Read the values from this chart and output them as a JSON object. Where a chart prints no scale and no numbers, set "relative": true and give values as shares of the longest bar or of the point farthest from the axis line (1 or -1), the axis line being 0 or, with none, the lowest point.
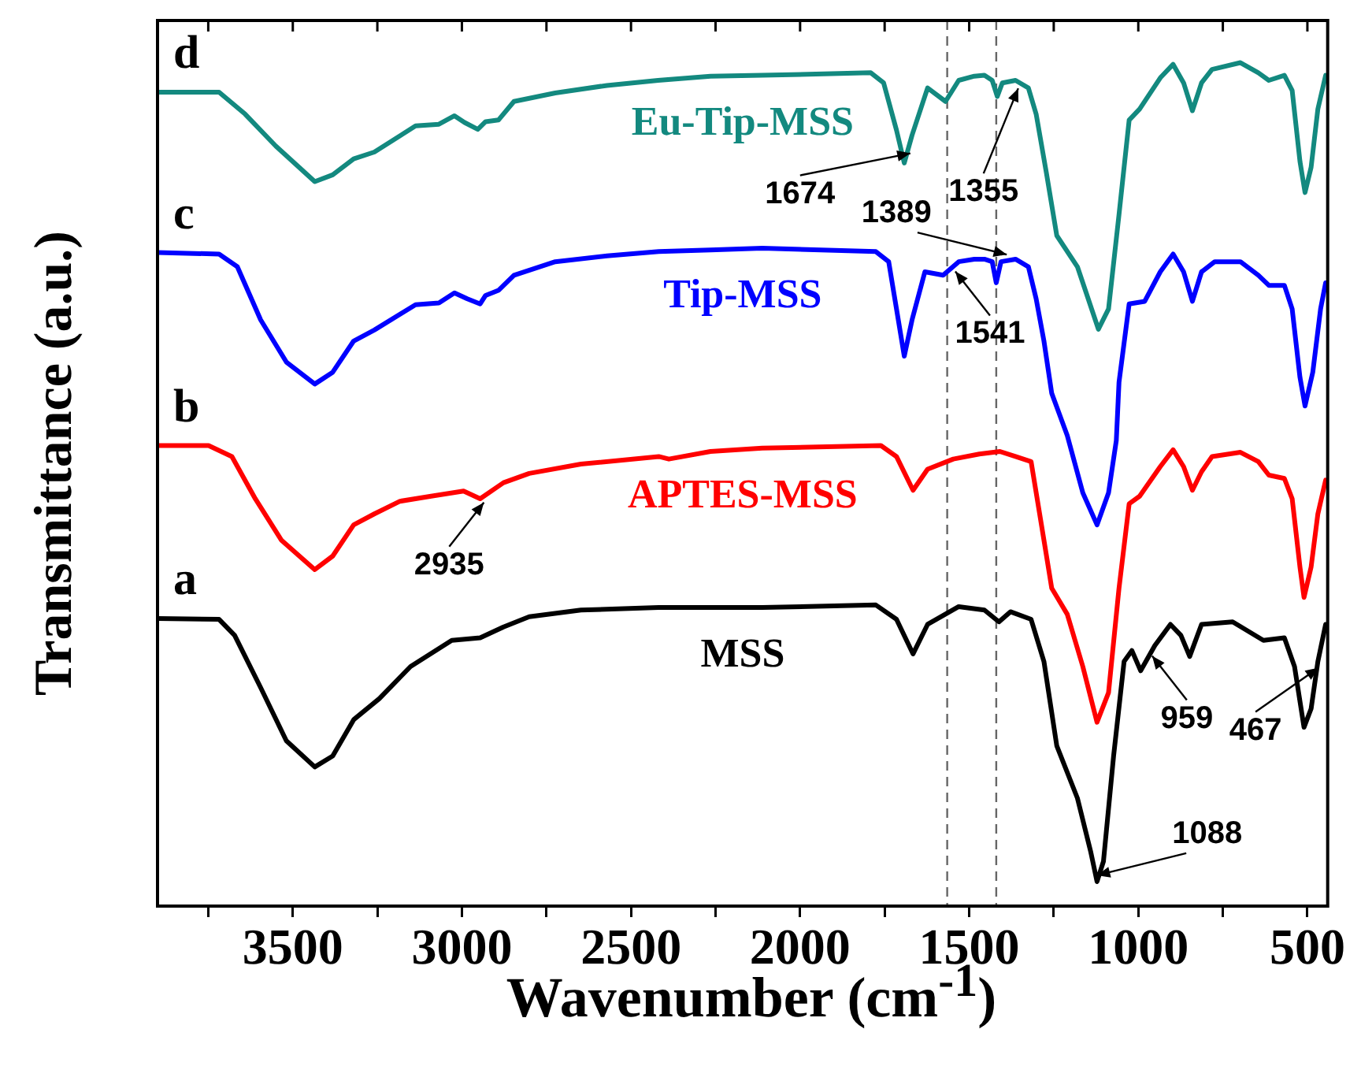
{
  "chart_data": {
    "type": "line",
    "xlabel": "Wavenumber (cm$^{-1}$)",
    "ylabel": "Transmittance (a.u.)",
    "relative": true,
    "marker": "none",
    "line_style": "solid",
    "legend": false,
    "xlim": [
      3900,
      440
    ],
    "xticks": [
      {
        "value": 3750,
        "label": null
      },
      3500,
      {
        "value": 3250,
        "label": null
      },
      3000,
      {
        "value": 2750,
        "label": null
      },
      2500,
      {
        "value": 2250,
        "label": null
      },
      2000,
      {
        "value": 1750,
        "label": null
      },
      1500,
      {
        "value": 1250,
        "label": null
      },
      1000,
      {
        "value": 750,
        "label": null
      },
      500
    ],
    "ref_lines": [
      {
        "axis": "x",
        "value": 1565,
        "color": "#666666",
        "line_style": "dashed"
      },
      {
        "axis": "x",
        "value": 1420,
        "color": "#666666",
        "line_style": "dashed"
      }
    ],
    "annotations": [
      "a",
      "b",
      "c",
      "d",
      {
        "text": "1355",
        "x": 1355,
        "y": 0.977
      },
      {
        "text": "1541",
        "x": 1541,
        "y": 0.76
      },
      {
        "text": "1389",
        "x": 1389,
        "y": 0.765
      },
      {
        "text": "959",
        "x": 959,
        "y": 0.304
      },
      {
        "text": "1674",
        "x": 1674,
        "y": 0.9
      },
      {
        "text": "467",
        "x": 467,
        "y": 0.29
      },
      {
        "text": "2935",
        "x": 2935,
        "y": 0.486
      },
      {
        "text": "1088",
        "x": 1122,
        "y": 0.029
      }
    ],
    "series": [
      {
        "name": "MSS",
        "color": "#000000",
        "x": [
          3900,
          3718,
          3672,
          3595,
          3519,
          3435,
          3382,
          3320,
          3244,
          3152,
          3030,
          2946,
          2877,
          2801,
          2648,
          2418,
          2112,
          1776,
          1715,
          1666,
          1623,
          1531,
          1455,
          1412,
          1378,
          1317,
          1279,
          1241,
          1180,
          1141,
          1122,
          1103,
          1073,
          1042,
          1019,
          993,
          951,
          905,
          874,
          848,
          813,
          721,
          630,
          568,
          538,
          510,
          489,
          469,
          446
        ],
        "values": [
          0.341,
          0.34,
          0.321,
          0.259,
          0.196,
          0.165,
          0.178,
          0.221,
          0.246,
          0.284,
          0.315,
          0.318,
          0.331,
          0.343,
          0.351,
          0.354,
          0.354,
          0.357,
          0.34,
          0.299,
          0.334,
          0.355,
          0.351,
          0.337,
          0.349,
          0.34,
          0.29,
          0.19,
          0.128,
          0.065,
          0.029,
          0.053,
          0.178,
          0.29,
          0.303,
          0.279,
          0.309,
          0.334,
          0.321,
          0.296,
          0.334,
          0.337,
          0.315,
          0.318,
          0.284,
          0.212,
          0.234,
          0.29,
          0.334
        ]
      },
      {
        "name": "APTES-MSS",
        "color": "#ff0000",
        "x": [
          3900,
          3749,
          3680,
          3611,
          3534,
          3435,
          3382,
          3320,
          3259,
          3183,
          3091,
          2995,
          2946,
          2877,
          2801,
          2648,
          2418,
          2388,
          2265,
          2112,
          1761,
          1715,
          1666,
          1623,
          1547,
          1470,
          1409,
          1363,
          1317,
          1279,
          1256,
          1210,
          1164,
          1122,
          1088,
          1057,
          1027,
          996,
          935,
          897,
          866,
          840,
          813,
          782,
          698,
          645,
          614,
          568,
          545,
          522,
          510,
          489,
          469,
          446
        ],
        "values": [
          0.546,
          0.546,
          0.533,
          0.483,
          0.434,
          0.399,
          0.415,
          0.452,
          0.465,
          0.48,
          0.486,
          0.492,
          0.483,
          0.502,
          0.513,
          0.524,
          0.533,
          0.53,
          0.539,
          0.543,
          0.546,
          0.533,
          0.493,
          0.518,
          0.53,
          0.536,
          0.539,
          0.533,
          0.527,
          0.434,
          0.377,
          0.346,
          0.284,
          0.218,
          0.253,
          0.377,
          0.477,
          0.486,
          0.521,
          0.541,
          0.521,
          0.493,
          0.515,
          0.533,
          0.538,
          0.527,
          0.511,
          0.507,
          0.483,
          0.402,
          0.366,
          0.402,
          0.465,
          0.505
        ]
      },
      {
        "name": "Tip-MSS",
        "color": "#0000ff",
        "x": [
          3900,
          3718,
          3664,
          3595,
          3519,
          3435,
          3382,
          3320,
          3259,
          3137,
          3068,
          3022,
          2984,
          2946,
          2930,
          2892,
          2846,
          2724,
          2571,
          2418,
          2265,
          2112,
          1776,
          1738,
          1715,
          1692,
          1669,
          1631,
          1577,
          1531,
          1485,
          1455,
          1432,
          1420,
          1406,
          1363,
          1325,
          1302,
          1279,
          1256,
          1210,
          1164,
          1122,
          1088,
          1065,
          1057,
          1027,
          981,
          935,
          897,
          866,
          840,
          813,
          774,
          698,
          645,
          614,
          568,
          545,
          522,
          507,
          484,
          461,
          446
        ],
        "values": [
          0.775,
          0.773,
          0.758,
          0.695,
          0.645,
          0.619,
          0.633,
          0.67,
          0.683,
          0.713,
          0.715,
          0.727,
          0.72,
          0.714,
          0.724,
          0.73,
          0.748,
          0.764,
          0.771,
          0.776,
          0.778,
          0.78,
          0.776,
          0.764,
          0.708,
          0.652,
          0.695,
          0.752,
          0.748,
          0.764,
          0.767,
          0.767,
          0.764,
          0.739,
          0.764,
          0.767,
          0.758,
          0.72,
          0.67,
          0.608,
          0.558,
          0.49,
          0.452,
          0.49,
          0.552,
          0.621,
          0.714,
          0.717,
          0.752,
          0.773,
          0.752,
          0.717,
          0.752,
          0.764,
          0.764,
          0.748,
          0.736,
          0.736,
          0.708,
          0.627,
          0.593,
          0.633,
          0.708,
          0.739
        ]
      },
      {
        "name": "Eu-Tip-MSS",
        "color": "#13897f",
        "x": [
          3900,
          3718,
          3641,
          3550,
          3435,
          3382,
          3320,
          3259,
          3137,
          3068,
          3022,
          2992,
          2953,
          2930,
          2892,
          2846,
          2724,
          2571,
          2420,
          2265,
          2112,
          1791,
          1753,
          1715,
          1692,
          1669,
          1623,
          1570,
          1531,
          1485,
          1455,
          1432,
          1417,
          1402,
          1363,
          1325,
          1302,
          1272,
          1241,
          1180,
          1118,
          1088,
          1057,
          1027,
          996,
          935,
          897,
          866,
          840,
          813,
          782,
          698,
          645,
          614,
          568,
          545,
          522,
          507,
          489,
          469,
          446
        ],
        "values": [
          0.965,
          0.965,
          0.939,
          0.901,
          0.859,
          0.867,
          0.886,
          0.894,
          0.925,
          0.927,
          0.937,
          0.929,
          0.921,
          0.93,
          0.932,
          0.954,
          0.964,
          0.973,
          0.979,
          0.984,
          0.985,
          0.988,
          0.976,
          0.92,
          0.881,
          0.914,
          0.97,
          0.954,
          0.979,
          0.984,
          0.985,
          0.979,
          0.96,
          0.976,
          0.979,
          0.97,
          0.939,
          0.87,
          0.795,
          0.758,
          0.684,
          0.708,
          0.82,
          0.932,
          0.945,
          0.982,
          0.998,
          0.976,
          0.943,
          0.976,
          0.992,
          1,
          0.988,
          0.979,
          0.985,
          0.967,
          0.883,
          0.846,
          0.876,
          0.945,
          0.985
        ]
      }
    ]
  }
}
